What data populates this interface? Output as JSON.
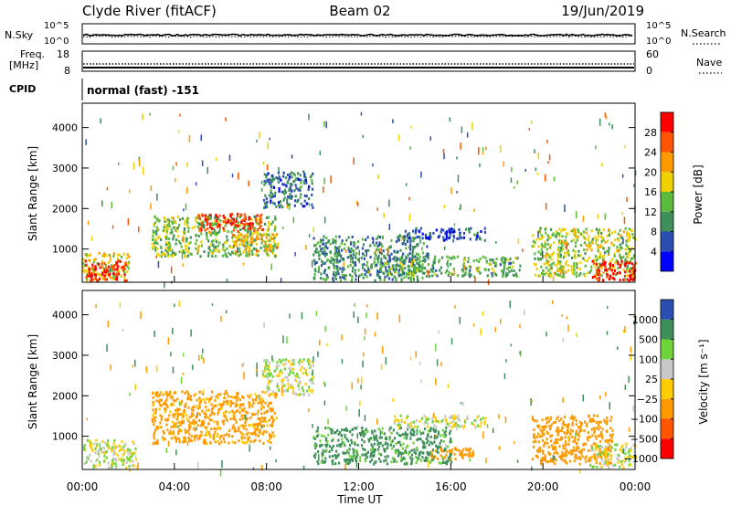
{
  "header": {
    "station": "Clyde River (fitACF)",
    "beam": "Beam 02",
    "date": "19/Jun/2019"
  },
  "noise_panel": {
    "left_label": "N.Sky",
    "right_label": "N.Search",
    "left_ticks": [
      "10^5",
      "10^0"
    ],
    "right_ticks": [
      "10^5",
      "10^0"
    ]
  },
  "freq_panel": {
    "left_label_line1": "Freq.",
    "left_label_line2": "[MHz]",
    "right_label": "Nave",
    "left_ticks": [
      "18",
      "8"
    ],
    "right_ticks": [
      "60",
      "0"
    ]
  },
  "cpid": {
    "label": "CPID",
    "value": "normal (fast) -151"
  },
  "colors": {
    "power": [
      "#0000ff",
      "#2b4eb0",
      "#3e8f5a",
      "#5cba3c",
      "#f0d000",
      "#ff9900",
      "#ff5500",
      "#ff0000"
    ],
    "velocity": [
      "#ff0000",
      "#ff5500",
      "#ff9900",
      "#ffcc00",
      "#c8c8c8",
      "#6fd33a",
      "#3e8f5a",
      "#2b4eb0"
    ]
  },
  "chart_data": [
    {
      "type": "heatmap",
      "name": "power",
      "ylabel": "Slant Range [km]",
      "ylim": [
        180,
        4600
      ],
      "yticks": [
        "1000",
        "2000",
        "3000",
        "4000"
      ],
      "xlim_hours": [
        0,
        24
      ],
      "colorbar_label": "Power [dB]",
      "colorbar_ticks": [
        "4",
        "8",
        "12",
        "16",
        "20",
        "24",
        "28"
      ],
      "colorbar_range": [
        0,
        32
      ],
      "regions": [
        {
          "t0": 0.0,
          "t1": 2.0,
          "r0": 200,
          "r1": 900,
          "value": 18
        },
        {
          "t0": 0.1,
          "t1": 1.9,
          "r0": 200,
          "r1": 700,
          "value": 30
        },
        {
          "t0": 3.0,
          "t1": 8.4,
          "r0": 800,
          "r1": 1800,
          "value": 14
        },
        {
          "t0": 5.0,
          "t1": 7.8,
          "r0": 1400,
          "r1": 1850,
          "value": 28
        },
        {
          "t0": 6.5,
          "t1": 8.5,
          "r0": 900,
          "r1": 1400,
          "value": 20
        },
        {
          "t0": 7.8,
          "t1": 10.0,
          "r0": 2000,
          "r1": 2900,
          "value": 8
        },
        {
          "t0": 10.0,
          "t1": 15.0,
          "r0": 200,
          "r1": 1300,
          "value": 10
        },
        {
          "t0": 13.0,
          "t1": 19.0,
          "r0": 300,
          "r1": 800,
          "value": 12
        },
        {
          "t0": 13.5,
          "t1": 17.5,
          "r0": 1200,
          "r1": 1500,
          "value": 6
        },
        {
          "t0": 19.5,
          "t1": 24.0,
          "r0": 300,
          "r1": 1500,
          "value": 16
        },
        {
          "t0": 22.0,
          "t1": 24.0,
          "r0": 200,
          "r1": 700,
          "value": 30
        }
      ]
    },
    {
      "type": "heatmap",
      "name": "velocity",
      "ylabel": "Slant Range [km]",
      "ylim": [
        180,
        4600
      ],
      "yticks": [
        "1000",
        "2000",
        "3000",
        "4000"
      ],
      "xlim_hours": [
        0,
        24
      ],
      "xlabel": "Time UT",
      "xticks": [
        "00:00",
        "04:00",
        "08:00",
        "12:00",
        "16:00",
        "20:00",
        "00:00"
      ],
      "colorbar_label": "Velocity [m s⁻¹]",
      "colorbar_ticks": [
        "1000",
        "500",
        "100",
        "25",
        "−25",
        "−100",
        "−500",
        "−1000"
      ],
      "regions": [
        {
          "t0": 0.0,
          "t1": 2.3,
          "r0": 200,
          "r1": 900,
          "value": 0
        },
        {
          "t0": 3.0,
          "t1": 8.4,
          "r0": 800,
          "r1": 2100,
          "value": -150
        },
        {
          "t0": 7.8,
          "t1": 10.0,
          "r0": 2000,
          "r1": 2900,
          "value": 0
        },
        {
          "t0": 10.0,
          "t1": 16.0,
          "r0": 300,
          "r1": 1200,
          "value": 150
        },
        {
          "t0": 15.0,
          "t1": 17.0,
          "r0": 400,
          "r1": 700,
          "value": -200
        },
        {
          "t0": 13.5,
          "t1": 17.5,
          "r0": 1200,
          "r1": 1500,
          "value": 0
        },
        {
          "t0": 19.5,
          "t1": 23.0,
          "r0": 300,
          "r1": 1500,
          "value": -200
        },
        {
          "t0": 22.0,
          "t1": 24.0,
          "r0": 200,
          "r1": 800,
          "value": 0
        }
      ]
    }
  ]
}
